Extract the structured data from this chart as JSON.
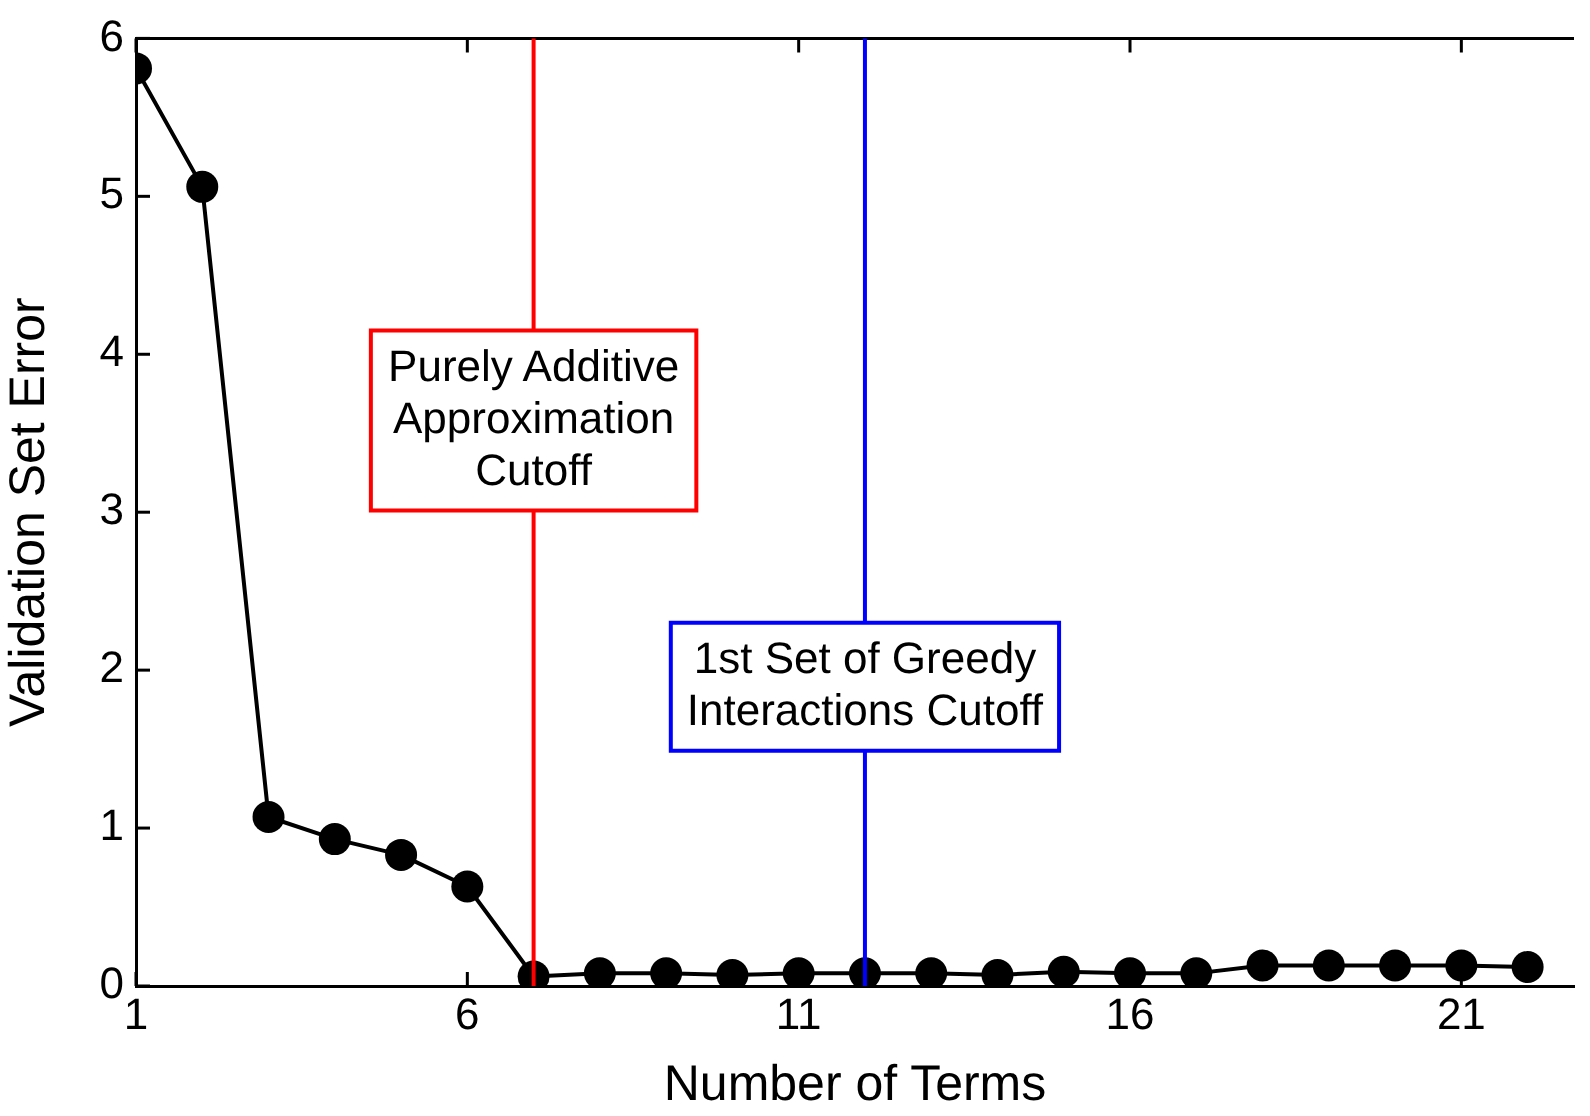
{
  "chart_data": {
    "type": "line",
    "xlabel": "Number of Terms",
    "ylabel": "Validation Set Error",
    "x": [
      1,
      2,
      3,
      4,
      5,
      6,
      7,
      8,
      9,
      10,
      11,
      12,
      13,
      14,
      15,
      16,
      17,
      18,
      19,
      20,
      21,
      22
    ],
    "series": [
      {
        "color": "#000000",
        "values": [
          5.81,
          5.06,
          1.07,
          0.93,
          0.83,
          0.63,
          0.06,
          0.08,
          0.08,
          0.07,
          0.08,
          0.08,
          0.08,
          0.07,
          0.09,
          0.08,
          0.08,
          0.13,
          0.13,
          0.13,
          0.13,
          0.12
        ]
      }
    ],
    "xlim": [
      1,
      22.7
    ],
    "xticks": [
      1,
      6,
      11,
      16,
      21
    ],
    "ylim": [
      0,
      6
    ],
    "yticks": [
      0,
      1,
      2,
      3,
      4,
      5,
      6
    ],
    "marker": "circle",
    "line_style": "solid",
    "legend": false,
    "ref_lines": [
      {
        "axis": "x",
        "value": 7,
        "label": "Purely Additive\nApproximation\nCutoff",
        "color": "#ff0000"
      },
      {
        "axis": "x",
        "value": 12,
        "label": "1st Set of Greedy\nInteractions Cutoff",
        "color": "#0000ff"
      }
    ]
  }
}
